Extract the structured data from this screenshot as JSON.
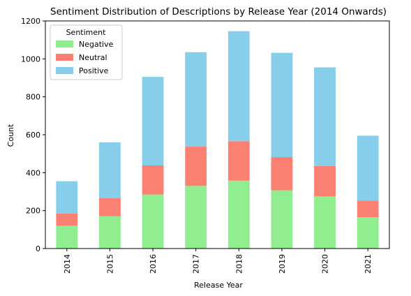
{
  "chart_data": {
    "type": "bar",
    "stacked": true,
    "title": "Sentiment Distribution of Descriptions by Release Year (2014 Onwards)",
    "xlabel": "Release Year",
    "ylabel": "Count",
    "categories": [
      "2014",
      "2015",
      "2016",
      "2017",
      "2018",
      "2019",
      "2020",
      "2021"
    ],
    "ylim": [
      0,
      1200
    ],
    "yticks": [
      "0",
      "200",
      "400",
      "600",
      "800",
      "1000",
      "1200"
    ],
    "grid": false,
    "legend": {
      "title": "Sentiment",
      "placement": "top-left"
    },
    "series": [
      {
        "name": "Negative",
        "color": "#90ee90",
        "values": [
          120,
          170,
          285,
          330,
          358,
          307,
          275,
          165
        ]
      },
      {
        "name": "Neutral",
        "color": "#fa8072",
        "values": [
          65,
          95,
          153,
          208,
          208,
          175,
          160,
          88
        ]
      },
      {
        "name": "Positive",
        "color": "#87ceeb",
        "values": [
          170,
          295,
          467,
          497,
          580,
          550,
          520,
          342
        ]
      }
    ]
  }
}
